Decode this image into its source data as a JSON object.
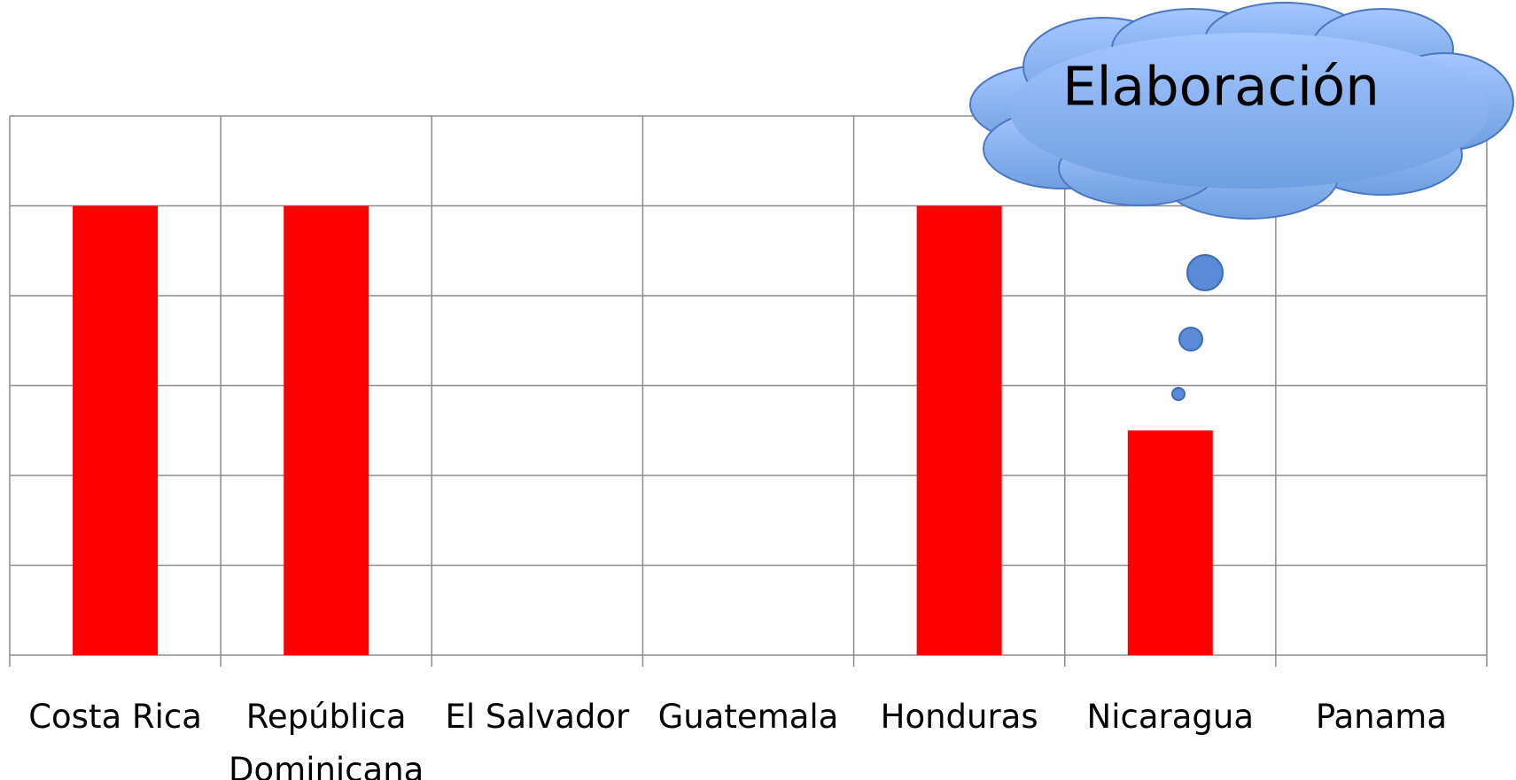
{
  "chart_data": {
    "type": "bar",
    "categories": [
      "Costa Rica",
      "República Dominicana",
      "El Salvador",
      "Guatemala",
      "Honduras",
      "Nicaragua",
      "Panama"
    ],
    "values": [
      5,
      5,
      0,
      0,
      5,
      2.5,
      0
    ],
    "color": "#ff0000",
    "ylim": [
      0,
      6
    ],
    "yticks": [
      0,
      1,
      2,
      3,
      4,
      5,
      6
    ],
    "grid": true,
    "annotation": "Elaboración"
  }
}
